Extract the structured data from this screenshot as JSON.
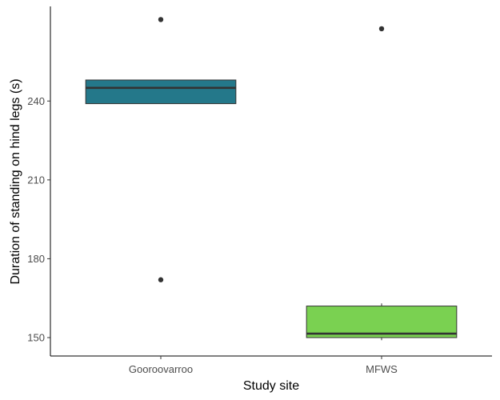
{
  "chart_data": {
    "type": "box",
    "xlabel": "Study site",
    "ylabel": "Duration of standing on hind legs (s)",
    "categories": [
      "Gooroovarroo",
      "MFWS"
    ],
    "y_ticks": [
      150,
      180,
      210,
      240
    ],
    "ylim": [
      143,
      276
    ],
    "grid": false,
    "legend": "none",
    "boxes": [
      {
        "category": "Gooroovarroo",
        "q1": 239,
        "median": 245,
        "q3": 248,
        "whisker_low": 239,
        "whisker_high": 248,
        "outliers": [
          271,
          172
        ],
        "color": "#24788a"
      },
      {
        "category": "MFWS",
        "q1": 150,
        "median": 151.5,
        "q3": 162,
        "whisker_low": 149,
        "whisker_high": 163,
        "outliers": [
          267.5
        ],
        "color": "#7ad151"
      }
    ]
  }
}
